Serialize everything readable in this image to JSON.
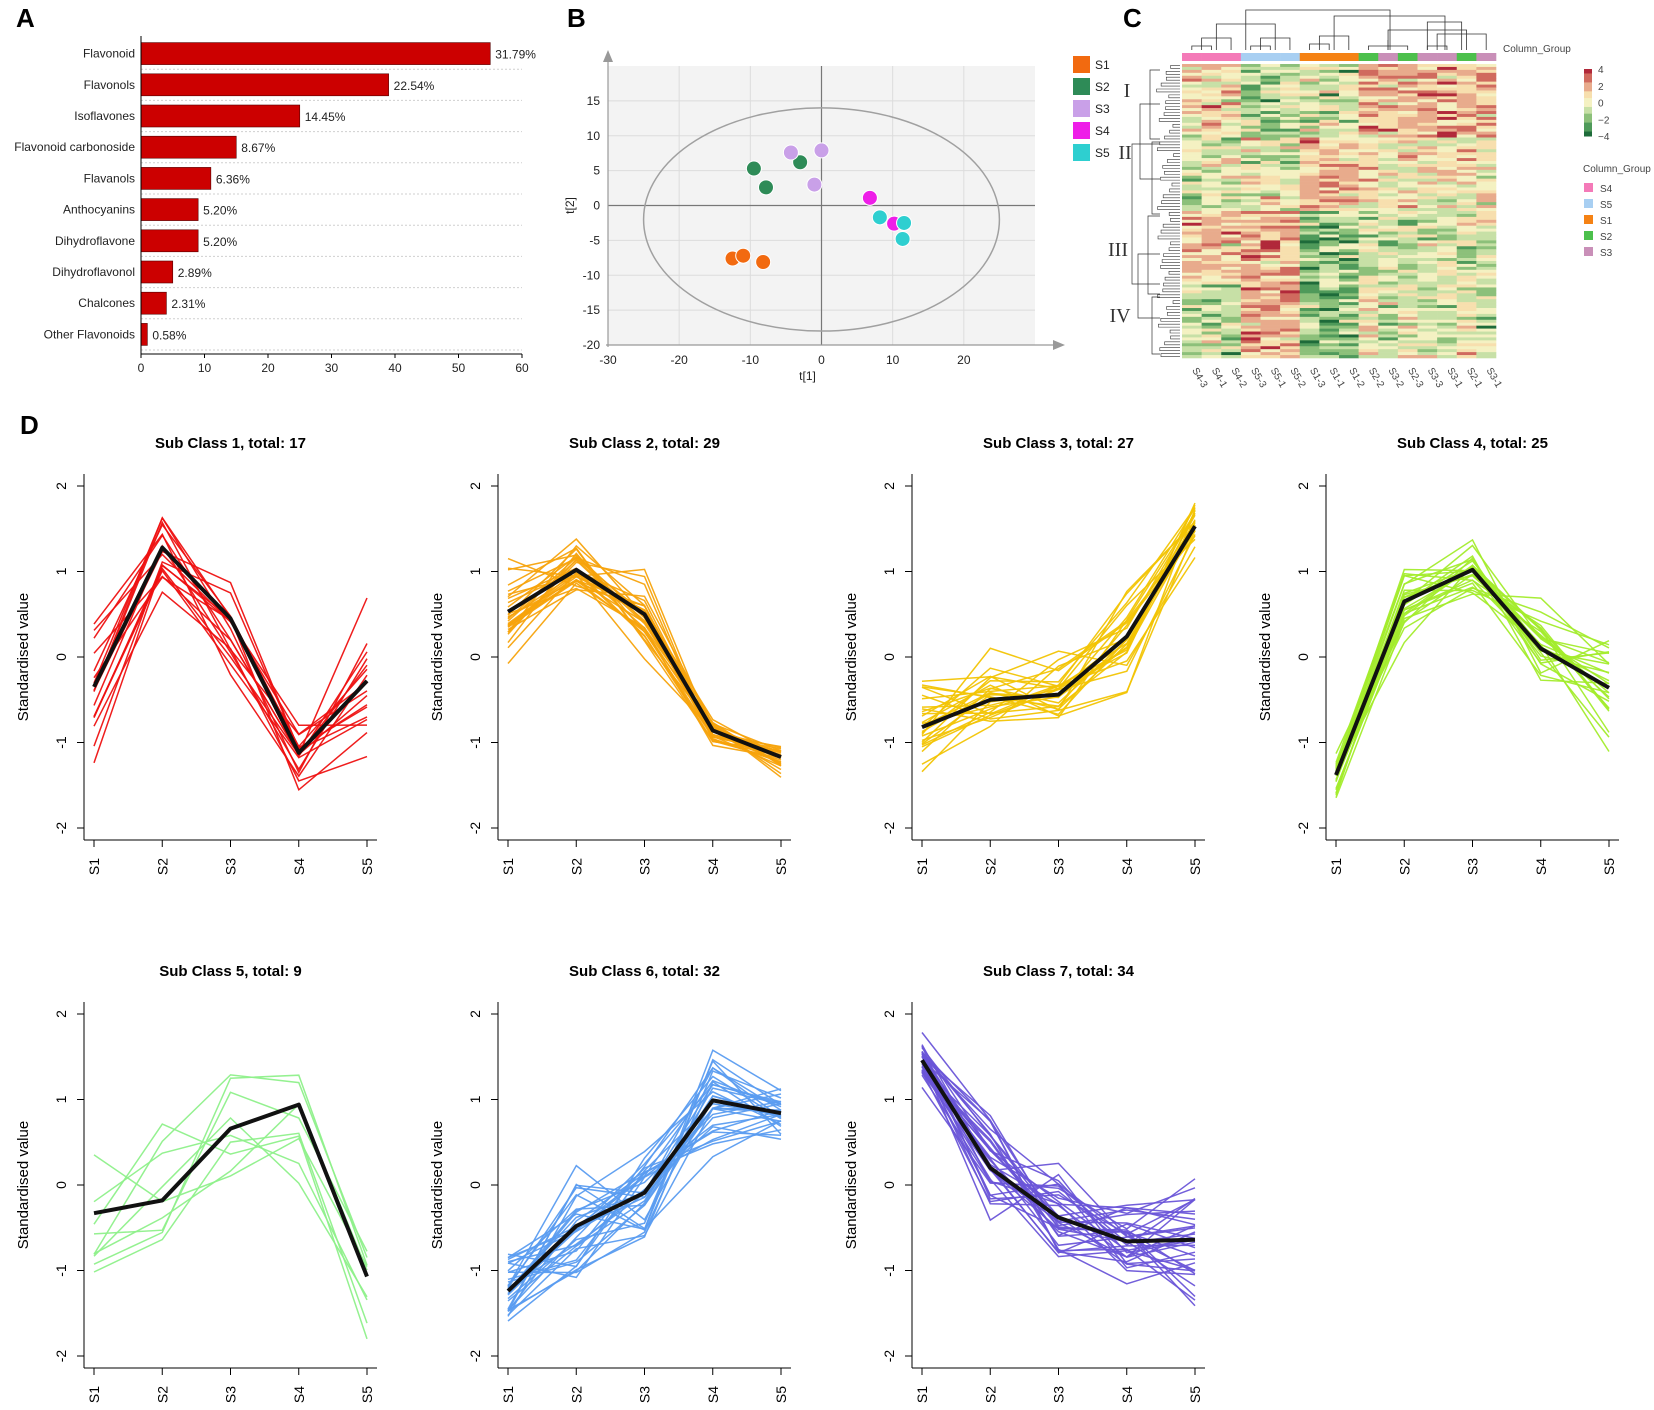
{
  "panel_labels": {
    "a": "A",
    "b": "B",
    "c": "C",
    "d": "D"
  },
  "colors": {
    "bar": "#cc0000",
    "S1": "#f26a10",
    "S2": "#2e8b57",
    "S3": "#c9a0e8",
    "S4": "#ee1ee8",
    "S5": "#2ecfd0",
    "heat_S4": "#f47ab8",
    "heat_S5": "#a8cff2",
    "heat_S1": "#f58214",
    "heat_S2": "#4cc04c",
    "heat_S3": "#c98fb8"
  },
  "chart_data": [
    {
      "id": "A",
      "type": "bar",
      "orientation": "horizontal",
      "categories": [
        "Flavonoid",
        "Flavonols",
        "Isoflavones",
        "Flavonoid carbonoside",
        "Flavanols",
        "Anthocyanins",
        "Dihydroflavone",
        "Dihydroflavonol",
        "Chalcones",
        "Other Flavonoids"
      ],
      "values": [
        55,
        39,
        25,
        15,
        11,
        9,
        9,
        5,
        4,
        1
      ],
      "data_labels": [
        "31.79%",
        "22.54%",
        "14.45%",
        "8.67%",
        "6.36%",
        "5.20%",
        "5.20%",
        "2.89%",
        "2.31%",
        "0.58%"
      ],
      "xlim": [
        0,
        60
      ],
      "xticks": [
        0,
        10,
        20,
        30,
        40,
        50,
        60
      ]
    },
    {
      "id": "B",
      "type": "scatter",
      "xlabel": "t[1]",
      "ylabel": "t[2]",
      "xlim": [
        -30,
        30
      ],
      "ylim": [
        -20,
        20
      ],
      "xticks": [
        -30,
        -20,
        -10,
        0,
        10,
        20
      ],
      "yticks": [
        -20,
        -15,
        -10,
        -5,
        0,
        5,
        10,
        15
      ],
      "ellipse": {
        "center": [
          0,
          -2
        ],
        "rx": 25,
        "ry": 16
      },
      "legend": [
        "S1",
        "S2",
        "S3",
        "S4",
        "S5"
      ],
      "series": [
        {
          "name": "S1",
          "points": [
            [
              -12.5,
              -7.6
            ],
            [
              -11,
              -7.2
            ],
            [
              -8.2,
              -8.1
            ]
          ]
        },
        {
          "name": "S2",
          "points": [
            [
              -9.5,
              5.3
            ],
            [
              -7.8,
              2.6
            ],
            [
              -3,
              6.2
            ]
          ]
        },
        {
          "name": "S3",
          "points": [
            [
              -4.3,
              7.6
            ],
            [
              0,
              7.9
            ],
            [
              -1,
              3
            ]
          ]
        },
        {
          "name": "S4",
          "points": [
            [
              6.8,
              1.1
            ],
            [
              10.2,
              -2.6
            ]
          ]
        },
        {
          "name": "S5",
          "points": [
            [
              8.2,
              -1.7
            ],
            [
              11.6,
              -2.5
            ],
            [
              11.4,
              -4.8
            ]
          ]
        }
      ]
    },
    {
      "id": "C",
      "type": "heatmap",
      "columns": [
        "S4-3",
        "S4-1",
        "S4-2",
        "S5-3",
        "S5-1",
        "S5-2",
        "S1-3",
        "S1-1",
        "S1-2",
        "S2-2",
        "S3-2",
        "S2-3",
        "S3-3",
        "S3-1",
        "S2-1",
        "S3-1"
      ],
      "column_groups": [
        "S4",
        "S4",
        "S4",
        "S5",
        "S5",
        "S5",
        "S1",
        "S1",
        "S1",
        "S2",
        "S3",
        "S2",
        "S3",
        "S3",
        "S2",
        "S3"
      ],
      "column_group_title": "Column_Group",
      "legend_groups": [
        "S4",
        "S5",
        "S1",
        "S2",
        "S3"
      ],
      "scale_ticks": [
        "4",
        "2",
        "0",
        "−2",
        "−4"
      ],
      "clusters": [
        "I",
        "II",
        "III",
        "IV"
      ],
      "rows": 173
    },
    {
      "id": "D",
      "type": "line",
      "ylabel": "Standardised value",
      "categories": [
        "S1",
        "S2",
        "S3",
        "S4",
        "S5"
      ],
      "ylim": [
        -2,
        2
      ],
      "yticks": [
        "2",
        "1",
        "0",
        "-1",
        "-2"
      ],
      "subplots": [
        {
          "title": "Sub Class 1, total: 17",
          "total": 17,
          "color": "#ee1111",
          "mean": [
            -0.35,
            1.28,
            0.45,
            -1.12,
            -0.28
          ],
          "spread": [
            0.4,
            0.22,
            0.28,
            0.2,
            0.4
          ]
        },
        {
          "title": "Sub Class 2, total: 29",
          "total": 29,
          "color": "#f7a30c",
          "mean": [
            0.53,
            1.02,
            0.5,
            -0.86,
            -1.17
          ],
          "spread": [
            0.3,
            0.18,
            0.22,
            0.08,
            0.1
          ]
        },
        {
          "title": "Sub Class 3, total: 27",
          "total": 27,
          "color": "#f2c404",
          "mean": [
            -0.82,
            -0.5,
            -0.44,
            0.24,
            1.53
          ],
          "spread": [
            0.3,
            0.22,
            0.2,
            0.3,
            0.14
          ]
        },
        {
          "title": "Sub Class 4, total: 25",
          "total": 25,
          "color": "#a3ec2c",
          "mean": [
            -1.38,
            0.65,
            1.02,
            0.1,
            -0.36
          ],
          "spread": [
            0.14,
            0.22,
            0.16,
            0.25,
            0.3
          ]
        },
        {
          "title": "Sub Class 5, total: 9",
          "total": 9,
          "color": "#8ef08a",
          "mean": [
            -0.33,
            -0.18,
            0.66,
            0.94,
            -1.07
          ],
          "spread": [
            0.4,
            0.5,
            0.4,
            0.45,
            0.4
          ]
        },
        {
          "title": "Sub Class 6, total: 32",
          "total": 32,
          "color": "#5a9cf0",
          "mean": [
            -1.24,
            -0.48,
            -0.09,
            0.99,
            0.84
          ],
          "spread": [
            0.2,
            0.35,
            0.28,
            0.25,
            0.17
          ]
        },
        {
          "title": "Sub Class 7, total: 34",
          "total": 34,
          "color": "#6a55d8",
          "mean": [
            1.46,
            0.2,
            -0.38,
            -0.66,
            -0.64
          ],
          "spread": [
            0.14,
            0.35,
            0.3,
            0.3,
            0.35
          ]
        }
      ]
    }
  ]
}
